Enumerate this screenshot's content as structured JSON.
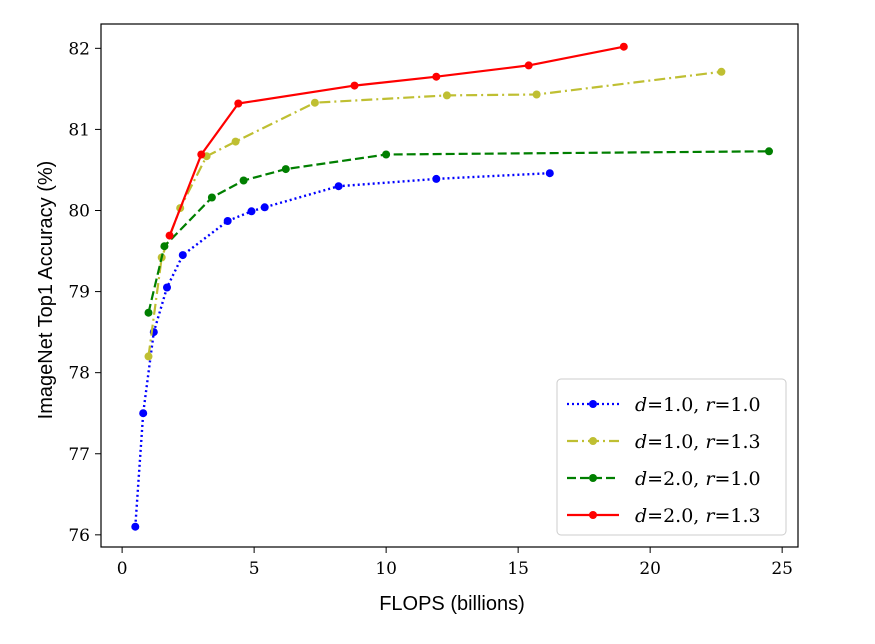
{
  "chart_data": {
    "type": "line",
    "title": "",
    "xlabel": "FLOPS (billions)",
    "ylabel": "ImageNet Top1 Accuracy (%)",
    "xlim": [
      -0.8,
      25.6
    ],
    "ylim": [
      75.85,
      82.3
    ],
    "xticks": [
      0,
      5,
      10,
      15,
      20,
      25
    ],
    "yticks": [
      76,
      77,
      78,
      79,
      80,
      81,
      82
    ],
    "grid": false,
    "legend_position": "bottom-right",
    "series": [
      {
        "name": "d=1.0, r=1.0",
        "label": {
          "d": "1.0",
          "r": "1.0"
        },
        "color": "#0000ff",
        "linestyle": "dotted",
        "x": [
          0.5,
          0.8,
          1.2,
          1.7,
          2.3,
          4.0,
          4.9,
          5.4,
          8.2,
          11.9,
          16.2
        ],
        "y": [
          76.1,
          77.5,
          78.5,
          79.05,
          79.45,
          79.87,
          79.99,
          80.04,
          80.3,
          80.39,
          80.46
        ]
      },
      {
        "name": "d=1.0, r=1.3",
        "label": {
          "d": "1.0",
          "r": "1.3"
        },
        "color": "#bfbf32",
        "linestyle": "dashdot",
        "x": [
          1.0,
          1.5,
          2.2,
          3.2,
          4.3,
          7.3,
          12.3,
          15.7,
          22.7
        ],
        "y": [
          78.2,
          79.42,
          80.03,
          80.67,
          80.85,
          81.33,
          81.42,
          81.43,
          81.71
        ]
      },
      {
        "name": "d=2.0, r=1.0",
        "label": {
          "d": "2.0",
          "r": "1.0"
        },
        "color": "#007f00",
        "linestyle": "dashed",
        "x": [
          1.0,
          1.6,
          3.4,
          4.6,
          6.2,
          10.0,
          24.5
        ],
        "y": [
          78.74,
          79.56,
          80.16,
          80.37,
          80.51,
          80.69,
          80.73
        ]
      },
      {
        "name": "d=2.0, r=1.3",
        "label": {
          "d": "2.0",
          "r": "1.3"
        },
        "color": "#ff0000",
        "linestyle": "solid",
        "x": [
          1.8,
          3.0,
          4.4,
          8.8,
          11.9,
          15.4,
          19.0
        ],
        "y": [
          79.69,
          80.69,
          81.32,
          81.54,
          81.65,
          81.79,
          82.02
        ]
      }
    ],
    "legend_labels": {
      "d_symbol": "d",
      "r_symbol": "r",
      "equals": "=",
      "separator": ", "
    }
  }
}
